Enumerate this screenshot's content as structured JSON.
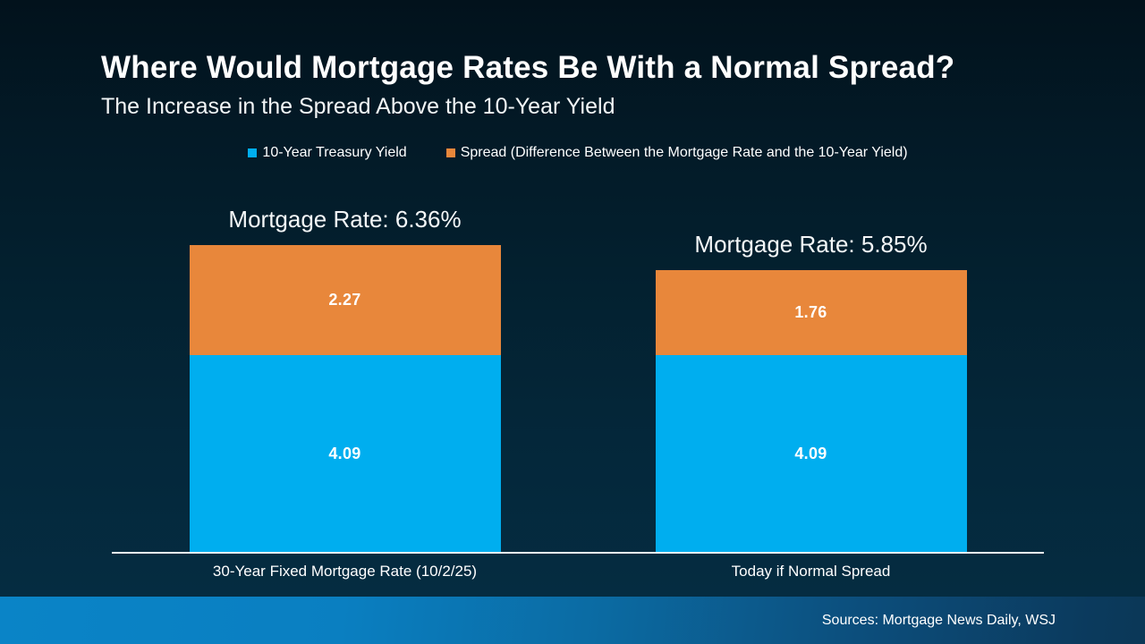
{
  "slide": {
    "title": "Where Would Mortgage Rates Be With a Normal Spread?",
    "subtitle": "The Increase in the Spread Above the 10-Year Yield",
    "sources": "Sources: Mortgage News Daily, WSJ"
  },
  "theme": {
    "background_top": "#02121c",
    "background_bottom": "#052d43",
    "footer_left": "#0a84c7",
    "footer_right": "#0b3857",
    "axis_color": "#eef2f4",
    "text_color": "#ffffff"
  },
  "chart_data": {
    "type": "bar",
    "stacked": true,
    "title": "Where Would Mortgage Rates Be With a Normal Spread?",
    "subtitle": "The Increase in the Spread Above the 10-Year Yield",
    "categories": [
      "30-Year Fixed Mortgage Rate (10/2/25)",
      "Today if Normal Spread"
    ],
    "series": [
      {
        "name": "10-Year Treasury Yield",
        "color": "#00AEEF",
        "values": [
          4.09,
          4.09
        ]
      },
      {
        "name": "Spread (Difference Between the Mortgage Rate and the 10-Year Yield)",
        "color": "#E8873B",
        "values": [
          2.27,
          1.76
        ]
      }
    ],
    "totals": [
      6.36,
      5.85
    ],
    "bar_labels": [
      "Mortgage Rate: 6.36%",
      "Mortgage Rate: 5.85%"
    ],
    "legend_position": "top-center",
    "grid": false,
    "y_axis_visible": false,
    "ylim": [
      0,
      7.7
    ]
  }
}
